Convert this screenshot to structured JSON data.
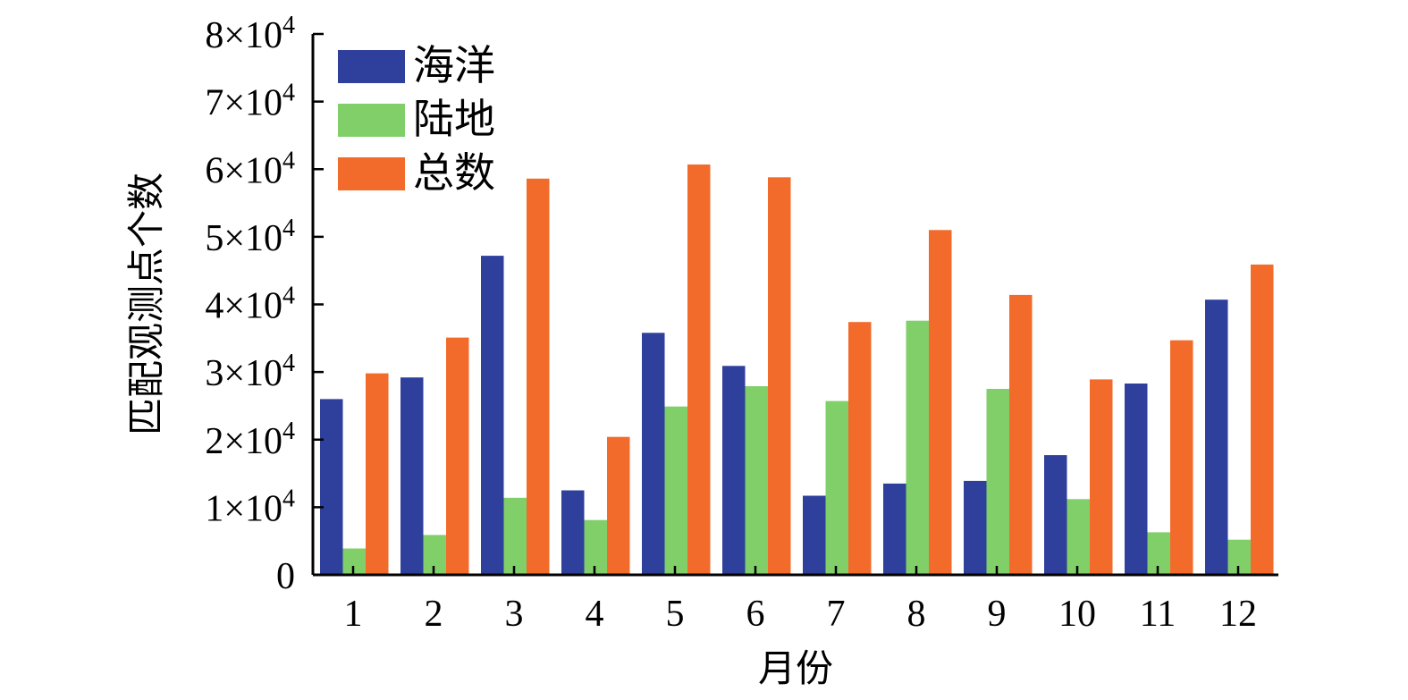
{
  "chart_data": {
    "type": "bar",
    "title": "",
    "xlabel": "月份",
    "ylabel": "匹配观测点个数",
    "categories": [
      "1",
      "2",
      "3",
      "4",
      "5",
      "6",
      "7",
      "8",
      "9",
      "10",
      "11",
      "12"
    ],
    "ylim": [
      0,
      80000
    ],
    "yticks": [
      0,
      10000,
      20000,
      30000,
      40000,
      50000,
      60000,
      70000,
      80000
    ],
    "ytick_labels": [
      {
        "base": "0",
        "exp": ""
      },
      {
        "base": "1×10",
        "exp": "4"
      },
      {
        "base": "2×10",
        "exp": "4"
      },
      {
        "base": "3×10",
        "exp": "4"
      },
      {
        "base": "4×10",
        "exp": "4"
      },
      {
        "base": "5×10",
        "exp": "4"
      },
      {
        "base": "6×10",
        "exp": "4"
      },
      {
        "base": "7×10",
        "exp": "4"
      },
      {
        "base": "8×10",
        "exp": "4"
      }
    ],
    "grid": false,
    "legend_position": "top-left",
    "series": [
      {
        "name": "海洋",
        "color": "#2e3f9c",
        "values": [
          26000,
          29200,
          47200,
          12500,
          35800,
          30900,
          11700,
          13500,
          13900,
          17700,
          28300,
          40700
        ]
      },
      {
        "name": "陆地",
        "color": "#80cf68",
        "values": [
          3900,
          5900,
          11400,
          8100,
          24900,
          27900,
          25700,
          37600,
          27500,
          11200,
          6300,
          5200
        ]
      },
      {
        "name": "总数",
        "color": "#f26b2b",
        "values": [
          29800,
          35100,
          58600,
          20400,
          60700,
          58800,
          37400,
          51000,
          41400,
          28900,
          34700,
          45900
        ]
      }
    ]
  }
}
